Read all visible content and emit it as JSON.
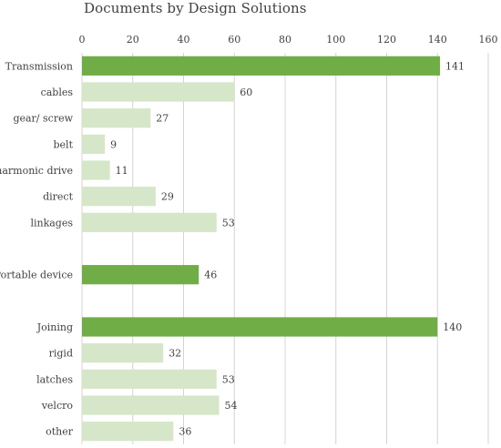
{
  "chart_data": {
    "type": "bar",
    "orientation": "horizontal",
    "title": "Documents by Design Solutions",
    "xlabel": "",
    "ylabel": "",
    "xlim": [
      0,
      160
    ],
    "x_ticks": [
      0,
      20,
      40,
      60,
      80,
      100,
      120,
      140,
      160
    ],
    "grid": "vertical",
    "legend": "none",
    "colors": {
      "group": "#70ad47",
      "item": "#d6e6c8",
      "grid": "#d4d4d4",
      "text": "#404040"
    },
    "bars": [
      {
        "label": "Transmission",
        "value": 141,
        "kind": "group"
      },
      {
        "label": "cables",
        "value": 60,
        "kind": "item"
      },
      {
        "label": "gear/ screw",
        "value": 27,
        "kind": "item"
      },
      {
        "label": "belt",
        "value": 9,
        "kind": "item"
      },
      {
        "label": "harmonic drive",
        "value": 11,
        "kind": "item"
      },
      {
        "label": "direct",
        "value": 29,
        "kind": "item"
      },
      {
        "label": "linkages",
        "value": 53,
        "kind": "item"
      },
      {
        "label": "",
        "value": null,
        "kind": "blank"
      },
      {
        "label": "Portable device",
        "value": 46,
        "kind": "group"
      },
      {
        "label": "",
        "value": null,
        "kind": "blank"
      },
      {
        "label": "Joining",
        "value": 140,
        "kind": "group"
      },
      {
        "label": "rigid",
        "value": 32,
        "kind": "item"
      },
      {
        "label": "latches",
        "value": 53,
        "kind": "item"
      },
      {
        "label": "velcro",
        "value": 54,
        "kind": "item"
      },
      {
        "label": "other",
        "value": 36,
        "kind": "item"
      }
    ]
  }
}
